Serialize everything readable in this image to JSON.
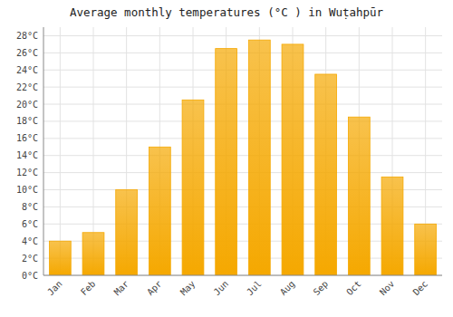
{
  "chart_data": {
    "type": "bar",
    "title": "Average monthly temperatures (°C ) in Wuṭahpūr",
    "categories": [
      "Jan",
      "Feb",
      "Mar",
      "Apr",
      "May",
      "Jun",
      "Jul",
      "Aug",
      "Sep",
      "Oct",
      "Nov",
      "Dec"
    ],
    "values": [
      4,
      5,
      10,
      15,
      20.5,
      26.5,
      27.5,
      27,
      23.5,
      18.5,
      11.5,
      6
    ],
    "color": "#F5A800",
    "ylim": [
      0,
      29
    ],
    "yticks": [
      {
        "value": 0,
        "label": "0°C"
      },
      {
        "value": 2,
        "label": "2°C"
      },
      {
        "value": 4,
        "label": "4°C"
      },
      {
        "value": 6,
        "label": "6°C"
      },
      {
        "value": 8,
        "label": "8°C"
      },
      {
        "value": 10,
        "label": "10°C"
      },
      {
        "value": 12,
        "label": "12°C"
      },
      {
        "value": 14,
        "label": "14°C"
      },
      {
        "value": 16,
        "label": "16°C"
      },
      {
        "value": 18,
        "label": "18°C"
      },
      {
        "value": 20,
        "label": "20°C"
      },
      {
        "value": 22,
        "label": "22°C"
      },
      {
        "value": 24,
        "label": "24°C"
      },
      {
        "value": 26,
        "label": "26°C"
      },
      {
        "value": 28,
        "label": "28°C"
      }
    ],
    "grid": true
  }
}
